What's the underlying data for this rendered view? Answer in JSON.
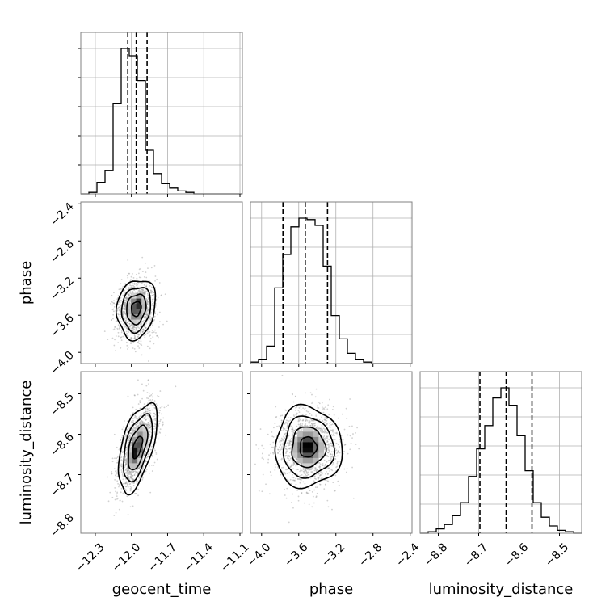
{
  "chart_data": {
    "type": "corner",
    "parameters": [
      "geocent_time",
      "phase",
      "luminosity_distance"
    ],
    "ticks": {
      "geocent_time": {
        "values": [
          -12.3,
          -12.0,
          -11.7,
          -11.4,
          -11.1
        ],
        "labels": [
          "−12.3",
          "−12.0",
          "−11.7",
          "−11.4",
          "−11.1"
        ]
      },
      "phase": {
        "values": [
          -4.0,
          -3.6,
          -3.2,
          -2.8,
          -2.4
        ],
        "labels": [
          "−4.0",
          "−3.6",
          "−3.2",
          "−2.8",
          "−2.4"
        ]
      },
      "luminosity_distance": {
        "values": [
          -8.8,
          -8.7,
          -8.6,
          -8.5
        ],
        "labels": [
          "−8.8",
          "−8.7",
          "−8.6",
          "−8.5"
        ]
      }
    },
    "ranges": {
      "geocent_time": [
        -12.42,
        -11.08
      ],
      "phase": [
        -4.12,
        -2.38
      ],
      "luminosity_distance": [
        -8.845,
        -8.445
      ]
    },
    "marginals": {
      "geocent_time": {
        "bin_edges": [
          -12.42,
          -12.353,
          -12.286,
          -12.219,
          -12.152,
          -12.085,
          -12.018,
          -11.951,
          -11.884,
          -11.817,
          -11.75,
          -11.683,
          -11.616,
          -11.549,
          -11.482,
          -11.415,
          -11.348,
          -11.281,
          -11.214,
          -11.147,
          -11.08
        ],
        "counts": [
          0,
          1,
          8,
          16,
          62,
          100,
          95,
          78,
          30,
          14,
          7,
          4,
          2,
          1,
          0,
          0,
          0,
          0,
          0,
          0
        ],
        "quantiles": [
          -12.03,
          -11.96,
          -11.87
        ]
      },
      "phase": {
        "bin_edges": [
          -4.12,
          -4.033,
          -3.946,
          -3.859,
          -3.772,
          -3.685,
          -3.598,
          -3.511,
          -3.424,
          -3.337,
          -3.25,
          -3.163,
          -3.076,
          -2.989,
          -2.902,
          -2.815,
          -2.728,
          -2.641,
          -2.554,
          -2.467,
          -2.38
        ],
        "counts": [
          1,
          3,
          12,
          52,
          75,
          94,
          100,
          99,
          95,
          67,
          33,
          17,
          7,
          3,
          1,
          0,
          0,
          0,
          0,
          0
        ],
        "quantiles": [
          -3.77,
          -3.53,
          -3.29
        ]
      },
      "luminosity_distance": {
        "bin_edges": [
          -8.845,
          -8.825,
          -8.805,
          -8.785,
          -8.765,
          -8.745,
          -8.725,
          -8.705,
          -8.685,
          -8.665,
          -8.645,
          -8.625,
          -8.605,
          -8.585,
          -8.565,
          -8.545,
          -8.525,
          -8.505,
          -8.485,
          -8.465,
          -8.445
        ],
        "counts": [
          0,
          1,
          3,
          6,
          12,
          21,
          39,
          58,
          74,
          93,
          100,
          88,
          67,
          43,
          21,
          11,
          5,
          2,
          1,
          0
        ],
        "quantiles": [
          -8.697,
          -8.632,
          -8.568
        ]
      }
    },
    "joint": [
      {
        "x": "geocent_time",
        "y": "phase",
        "center": [
          -11.96,
          -3.53
        ],
        "sigma": [
          0.08,
          0.16
        ],
        "correlation": 0.15,
        "peak": [
          -11.94,
          -3.45
        ]
      },
      {
        "x": "geocent_time",
        "y": "luminosity_distance",
        "center": [
          -11.95,
          -8.632
        ],
        "sigma": [
          0.08,
          0.055
        ],
        "correlation": 0.55,
        "peak": [
          -11.98,
          -8.65
        ]
      },
      {
        "x": "phase",
        "y": "luminosity_distance",
        "center": [
          -3.5,
          -8.632
        ],
        "sigma": [
          0.18,
          0.05
        ],
        "correlation": 0.0,
        "peak": [
          -3.5,
          -8.63
        ]
      }
    ],
    "contour_levels_sigma": [
      0.5,
      1.0,
      1.5,
      2.0
    ],
    "grid": true
  }
}
